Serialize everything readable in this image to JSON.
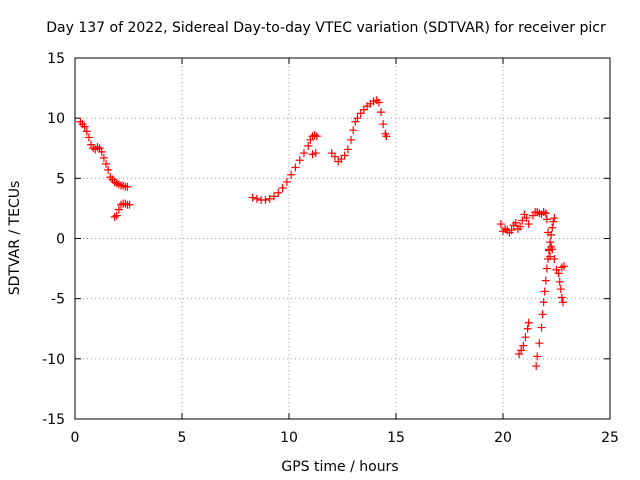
{
  "chart_data": {
    "type": "scatter",
    "title": "Day 137 of 2022, Sidereal Day-to-day VTEC variation (SDTVAR) for receiver picr",
    "xlabel": "GPS time / hours",
    "ylabel": "SDTVAR / TECUs",
    "xlim": [
      0,
      25
    ],
    "ylim": [
      -15,
      15
    ],
    "xticks": [
      "0",
      "5",
      "10",
      "15",
      "20",
      "25"
    ],
    "yticks": [
      "15",
      "10",
      "5",
      "0",
      "-5",
      "-10",
      "-15"
    ],
    "grid": true,
    "marker": "plus",
    "color": "#ff0000",
    "series": [
      {
        "points": [
          [
            0.25,
            9.7
          ],
          [
            0.35,
            9.5
          ],
          [
            0.45,
            9.3
          ],
          [
            0.55,
            8.9
          ],
          [
            0.65,
            8.4
          ],
          [
            0.75,
            7.8
          ],
          [
            0.85,
            7.5
          ],
          [
            0.95,
            7.4
          ],
          [
            1.05,
            7.6
          ],
          [
            1.15,
            7.5
          ],
          [
            1.25,
            7.2
          ],
          [
            1.35,
            6.7
          ],
          [
            1.45,
            6.2
          ],
          [
            1.55,
            5.7
          ],
          [
            1.65,
            5.1
          ],
          [
            1.75,
            4.9
          ],
          [
            1.85,
            4.7
          ],
          [
            1.95,
            4.6
          ],
          [
            2.05,
            4.5
          ],
          [
            2.15,
            4.4
          ],
          [
            2.25,
            4.4
          ],
          [
            2.35,
            4.3
          ],
          [
            2.45,
            4.3
          ],
          [
            1.85,
            1.8
          ],
          [
            1.95,
            1.9
          ],
          [
            2.05,
            2.4
          ],
          [
            2.15,
            2.8
          ],
          [
            2.25,
            2.9
          ],
          [
            2.35,
            2.9
          ],
          [
            2.45,
            2.8
          ],
          [
            2.55,
            2.8
          ],
          [
            8.3,
            3.4
          ],
          [
            8.5,
            3.3
          ],
          [
            8.7,
            3.2
          ],
          [
            8.9,
            3.2
          ],
          [
            9.1,
            3.3
          ],
          [
            9.3,
            3.5
          ],
          [
            9.5,
            3.8
          ],
          [
            9.7,
            4.2
          ],
          [
            9.9,
            4.7
          ],
          [
            10.1,
            5.3
          ],
          [
            10.3,
            5.9
          ],
          [
            10.5,
            6.5
          ],
          [
            10.7,
            7.1
          ],
          [
            10.9,
            7.7
          ],
          [
            11.0,
            8.2
          ],
          [
            11.1,
            8.5
          ],
          [
            11.2,
            8.6
          ],
          [
            11.3,
            8.5
          ],
          [
            11.1,
            7.0
          ],
          [
            11.25,
            7.1
          ],
          [
            12.0,
            7.1
          ],
          [
            12.15,
            6.8
          ],
          [
            12.3,
            6.4
          ],
          [
            12.45,
            6.6
          ],
          [
            12.6,
            6.9
          ],
          [
            12.75,
            7.4
          ],
          [
            12.9,
            8.2
          ],
          [
            13.0,
            9.0
          ],
          [
            13.1,
            9.7
          ],
          [
            13.2,
            10.0
          ],
          [
            13.35,
            10.4
          ],
          [
            13.5,
            10.7
          ],
          [
            13.65,
            11.0
          ],
          [
            13.8,
            11.2
          ],
          [
            13.95,
            11.4
          ],
          [
            14.1,
            11.5
          ],
          [
            14.2,
            11.3
          ],
          [
            14.3,
            10.5
          ],
          [
            14.4,
            9.5
          ],
          [
            14.5,
            8.7
          ],
          [
            14.55,
            8.5
          ],
          [
            19.9,
            1.2
          ],
          [
            20.0,
            0.6
          ],
          [
            20.1,
            0.8
          ],
          [
            20.2,
            0.7
          ],
          [
            20.3,
            0.5
          ],
          [
            20.4,
            0.7
          ],
          [
            20.5,
            1.1
          ],
          [
            20.6,
            1.3
          ],
          [
            20.7,
            0.8
          ],
          [
            20.8,
            1.0
          ],
          [
            20.9,
            1.5
          ],
          [
            21.0,
            2.0
          ],
          [
            21.1,
            1.7
          ],
          [
            21.2,
            1.2
          ],
          [
            21.4,
            1.9
          ],
          [
            21.5,
            2.2
          ],
          [
            21.6,
            2.2
          ],
          [
            21.7,
            2.1
          ],
          [
            21.8,
            2.0
          ],
          [
            21.9,
            2.2
          ],
          [
            22.0,
            2.1
          ],
          [
            22.05,
            1.6
          ],
          [
            22.1,
            0.5
          ],
          [
            22.15,
            -1.0
          ],
          [
            22.2,
            -1.5
          ],
          [
            22.25,
            -0.7
          ],
          [
            22.3,
            -0.9
          ],
          [
            22.4,
            -1.7
          ],
          [
            22.5,
            -2.6
          ],
          [
            22.6,
            -2.9
          ],
          [
            22.65,
            -3.6
          ],
          [
            22.7,
            -4.2
          ],
          [
            22.75,
            -4.9
          ],
          [
            22.8,
            -5.3
          ],
          [
            22.75,
            -2.4
          ],
          [
            22.85,
            -2.3
          ],
          [
            20.75,
            -9.6
          ],
          [
            20.85,
            -9.3
          ],
          [
            20.95,
            -8.9
          ],
          [
            21.05,
            -8.2
          ],
          [
            21.15,
            -7.5
          ],
          [
            21.2,
            -7.0
          ],
          [
            21.55,
            -10.6
          ],
          [
            21.6,
            -9.8
          ],
          [
            21.7,
            -8.7
          ],
          [
            21.8,
            -7.4
          ],
          [
            21.85,
            -6.3
          ],
          [
            21.9,
            -5.3
          ],
          [
            21.95,
            -4.4
          ],
          [
            22.0,
            -3.5
          ],
          [
            22.05,
            -2.5
          ],
          [
            22.1,
            -1.7
          ],
          [
            22.15,
            -0.9
          ],
          [
            22.2,
            -0.3
          ],
          [
            22.25,
            0.3
          ],
          [
            22.3,
            0.9
          ],
          [
            22.35,
            1.4
          ],
          [
            22.4,
            1.7
          ]
        ]
      }
    ]
  }
}
